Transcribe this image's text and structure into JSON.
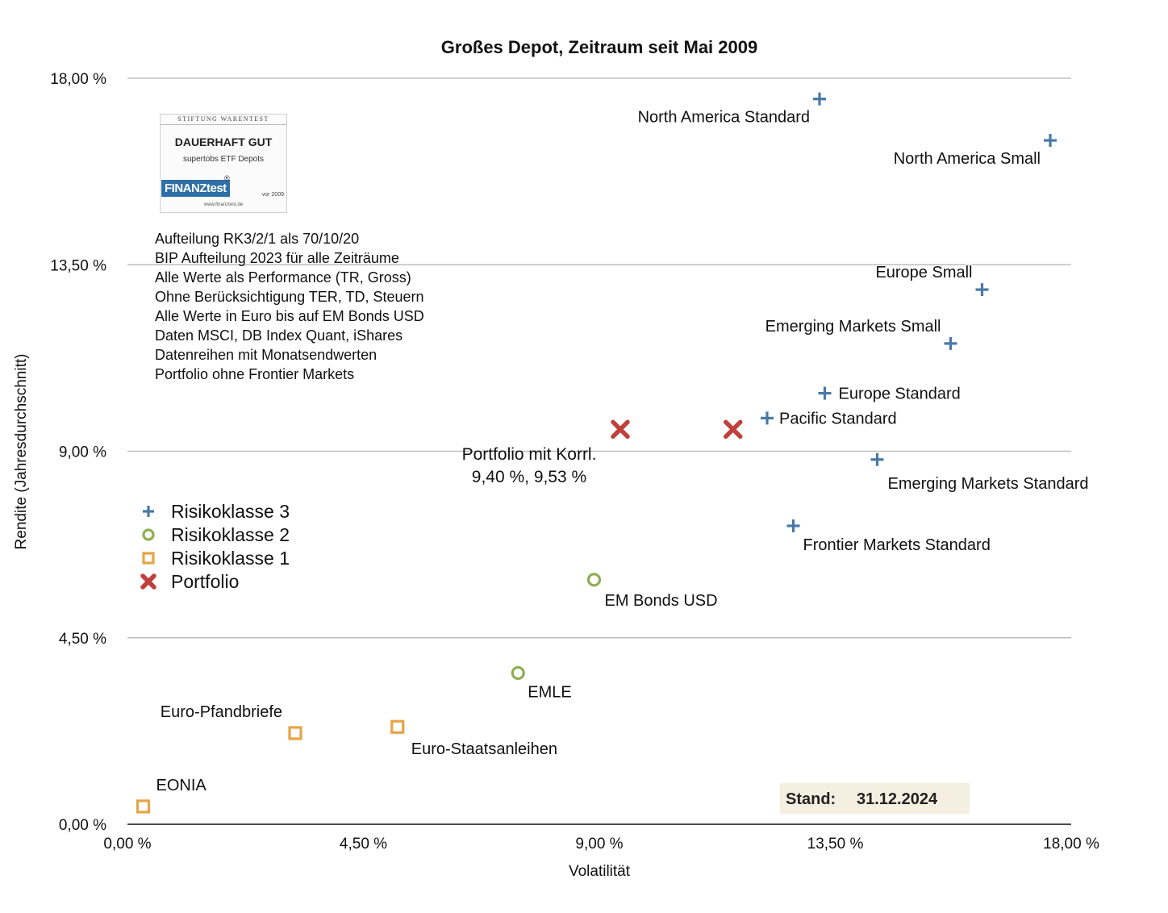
{
  "chart_data": {
    "type": "scatter",
    "title": "Großes Depot, Zeitraum seit Mai 2009",
    "xlabel": "Volatilität",
    "ylabel": "Rendite (Jahresdurchschnitt)",
    "xlim": [
      0,
      18
    ],
    "ylim": [
      0,
      18
    ],
    "xticks": [
      "0,00 %",
      "4,50 %",
      "9,00 %",
      "13,50 %",
      "18,00 %"
    ],
    "yticks": [
      "0,00 %",
      "4,50 %",
      "9,00 %",
      "13,50 %",
      "18,00 %"
    ],
    "grid": "horizontal",
    "legend_position": "left",
    "series": [
      {
        "name": "Risikoklasse 3",
        "marker": "plus",
        "color": "#4a78a6",
        "points": [
          {
            "label": "North America Standard",
            "x": 13.2,
            "y": 17.5
          },
          {
            "label": "North America Small",
            "x": 17.6,
            "y": 16.5
          },
          {
            "label": "Europe Small",
            "x": 16.3,
            "y": 12.9
          },
          {
            "label": "Emerging Markets Small",
            "x": 15.7,
            "y": 11.6
          },
          {
            "label": "Europe Standard",
            "x": 13.3,
            "y": 10.4
          },
          {
            "label": "Pacific Standard",
            "x": 12.2,
            "y": 9.8
          },
          {
            "label": "Emerging Markets Standard",
            "x": 14.3,
            "y": 8.8
          },
          {
            "label": "Frontier Markets Standard",
            "x": 12.7,
            "y": 7.2
          }
        ]
      },
      {
        "name": "Risikoklasse 2",
        "marker": "circle",
        "color": "#8eae52",
        "points": [
          {
            "label": "EM Bonds USD",
            "x": 8.9,
            "y": 5.9
          },
          {
            "label": "EMLE",
            "x": 7.45,
            "y": 3.65
          }
        ]
      },
      {
        "name": "Risikoklasse 1",
        "marker": "square",
        "color": "#e6a446",
        "points": [
          {
            "label": "Euro-Pfandbriefe",
            "x": 3.2,
            "y": 2.2
          },
          {
            "label": "Euro-Staatsanleihen",
            "x": 5.15,
            "y": 2.35
          },
          {
            "label": "EONIA",
            "x": 0.3,
            "y": 0.43
          }
        ]
      },
      {
        "name": "Portfolio",
        "marker": "x",
        "color": "#c0403c",
        "points": [
          {
            "label": "",
            "x": 9.4,
            "y": 9.53
          },
          {
            "label": "",
            "x": 11.55,
            "y": 9.53
          }
        ]
      }
    ],
    "annotations": {
      "portfolio_label": [
        "Portfolio mit Korrl.",
        "9,40 %, 9,53 %"
      ],
      "notes": [
        "Aufteilung RK3/2/1 als 70/10/20",
        "BIP Aufteilung 2023 für alle Zeiträume",
        "Alle Werte als Performance (TR, Gross)",
        "Ohne Berücksichtigung TER, TD, Steuern",
        "Alle Werte in Euro bis auf EM Bonds USD",
        "Daten MSCI, DB Index Quant, iShares",
        "Datenreihen mit Monatsendwerten",
        "Portfolio ohne Frontier Markets"
      ],
      "stand_label": "Stand:",
      "stand_date": "31.12.2024"
    }
  },
  "badge": {
    "top": "STIFTUNG WARENTEST",
    "main": "DAUERHAFT GUT",
    "sub": "supertobs ETF Depots",
    "brand": "FINANZtest",
    "registered": "®",
    "year": "vor 2009",
    "url": "www.finanztest.de"
  }
}
